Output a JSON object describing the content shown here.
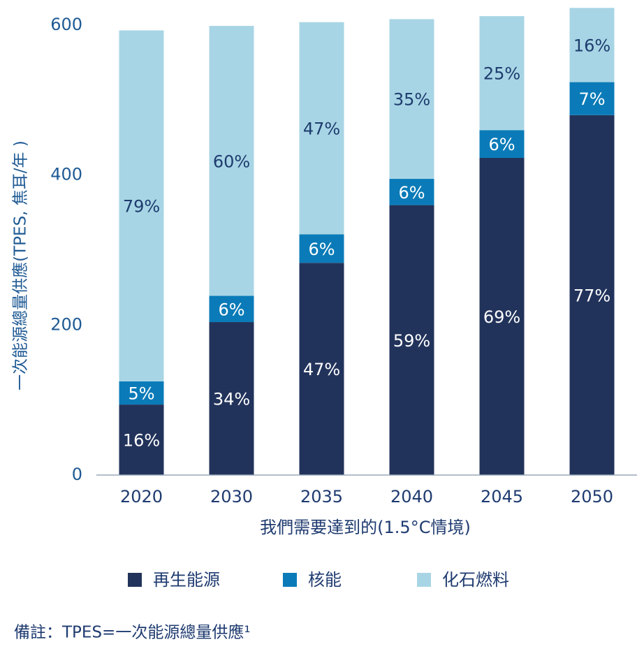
{
  "chart_data": {
    "type": "stacked_bar",
    "y_label": "一次能源總量供應(TPES, 焦耳/年 )",
    "x_label": "我們需要達到的(1.5°C情境)",
    "categories": [
      "2020",
      "2030",
      "2035",
      "2040",
      "2045",
      "2050"
    ],
    "series": [
      {
        "name": "再生能源",
        "color": "#22335b",
        "label_color": "#ffffff",
        "values": [
          94,
          204,
          283,
          360,
          423,
          480
        ],
        "labels": [
          "16%",
          "34%",
          "47%",
          "59%",
          "69%",
          "77%"
        ]
      },
      {
        "name": "核能",
        "color": "#0a7bb8",
        "label_color": "#ffffff",
        "values": [
          31,
          35,
          38,
          35,
          37,
          44
        ],
        "labels": [
          "5%",
          "6%",
          "6%",
          "6%",
          "6%",
          "7%"
        ]
      },
      {
        "name": "化石燃料",
        "color": "#a8d5e5",
        "label_color": "#1d3c6e",
        "values": [
          468,
          360,
          283,
          213,
          152,
          99
        ],
        "labels": [
          "79%",
          "60%",
          "47%",
          "35%",
          "25%",
          "16%"
        ]
      }
    ],
    "ylim": [
      0,
      600
    ],
    "yticks": [
      0,
      200,
      400,
      600
    ],
    "grid": false,
    "note": "備註：TPES=一次能源總量供應¹"
  }
}
